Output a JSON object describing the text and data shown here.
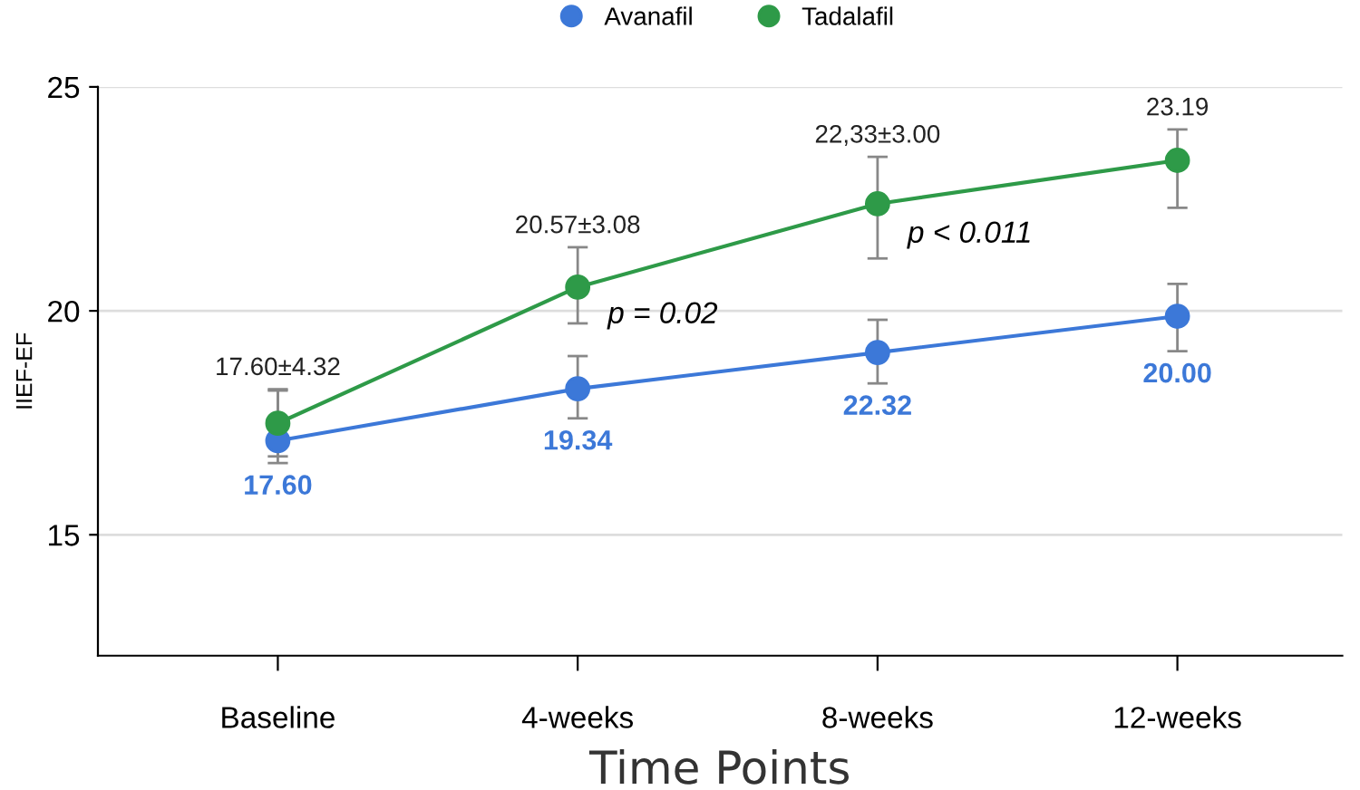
{
  "chart_data": {
    "type": "line",
    "xlabel": "Time Points",
    "ylabel": "IIEF-EF",
    "categories": [
      "Baseline",
      "4-weeks",
      "8-weeks",
      "12-weeks"
    ],
    "series": [
      {
        "name": "Avanafil",
        "color": "#3c78d8",
        "values": [
          17.1,
          18.26,
          19.07,
          19.88
        ],
        "errors": [
          [
            16.6,
            18.22
          ],
          [
            17.6,
            18.99
          ],
          [
            18.38,
            19.8
          ],
          [
            19.1,
            20.6
          ]
        ]
      },
      {
        "name": "Tadalafil",
        "color": "#2e9a48",
        "values": [
          17.49,
          20.53,
          22.39,
          23.36
        ],
        "errors": [
          [
            16.75,
            18.25
          ],
          [
            19.72,
            21.42
          ],
          [
            21.17,
            23.44
          ],
          [
            22.3,
            24.05
          ]
        ]
      }
    ],
    "annotations": [
      {
        "text": "17.60",
        "x": "Baseline",
        "y": 17.1
      },
      {
        "text": "19.34",
        "x": "4-weeks",
        "y": 18.26
      },
      {
        "text": "22.32",
        "x": "8-weeks",
        "y": 19.07
      },
      {
        "text": "20.00",
        "x": "12-weeks",
        "y": 19.88
      },
      {
        "text": "17.60±4.32",
        "x": "Baseline",
        "y": 17.49
      },
      {
        "text": "20.57±3.08",
        "x": "4-weeks",
        "y": 20.53
      },
      {
        "text": "22,33±3.00",
        "x": "8-weeks",
        "y": 22.39
      },
      {
        "text": "23.19",
        "x": "12-weeks",
        "y": 23.36
      },
      {
        "text": "p = 0.02",
        "x": "4-weeks",
        "y": 19.9
      },
      {
        "text": "p < 0.011",
        "x": "8-weeks",
        "y": 21.7
      }
    ],
    "ylim": [
      12.3,
      25
    ],
    "yticks": [
      15,
      20,
      25
    ],
    "grid": "y",
    "legend": "top",
    "marker": "circle",
    "line_style": "solid"
  }
}
